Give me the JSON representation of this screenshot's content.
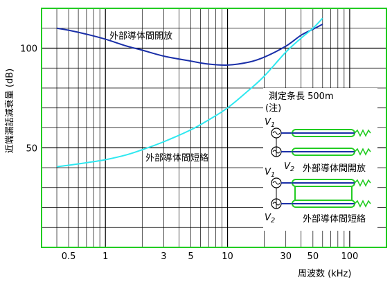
{
  "chart_data": {
    "type": "line",
    "x_scale": "log",
    "xlim": [
      0.3,
      200
    ],
    "ylim": [
      0,
      120
    ],
    "xlabel": "周波数 (kHz)",
    "ylabel": "近端漏話減衰量 (dB)",
    "x_ticks": [
      0.5,
      1,
      3,
      5,
      10,
      30,
      50,
      100
    ],
    "x_tick_labels": [
      "0.5",
      "1",
      "3",
      "5",
      "10",
      "30",
      "50",
      "100"
    ],
    "y_ticks": [
      50,
      100
    ],
    "y_tick_labels": [
      "50",
      "100"
    ],
    "grid": true,
    "frame_color": "#22cc22",
    "series": [
      {
        "name": "外部導体間開放",
        "color": "#1a2fa8",
        "x": [
          0.4,
          0.5,
          0.7,
          1,
          1.5,
          2,
          3,
          5,
          7,
          10,
          15,
          20,
          30,
          40,
          50,
          60
        ],
        "y": [
          110,
          109,
          107,
          104.5,
          101,
          99,
          96,
          93.5,
          92,
          91.5,
          93,
          95.5,
          101,
          106.5,
          109.5,
          112
        ]
      },
      {
        "name": "外部導体間短絡",
        "color": "#2ee8f0",
        "x": [
          0.4,
          0.5,
          0.7,
          1,
          1.5,
          2,
          3,
          5,
          7,
          10,
          15,
          20,
          30,
          40,
          50,
          60
        ],
        "y": [
          40.5,
          41.2,
          42.5,
          44,
          46.5,
          49,
          53,
          59,
          64,
          70,
          79,
          86,
          98,
          105,
          110,
          115
        ]
      }
    ],
    "inset": {
      "title": "測定条長 500m",
      "note": "(注)",
      "v1": "V",
      "v1_sub": "1",
      "v2": "V",
      "v2_sub": "2",
      "top_label": "外部導体間開放",
      "bottom_label": "外部導体間短絡"
    }
  }
}
